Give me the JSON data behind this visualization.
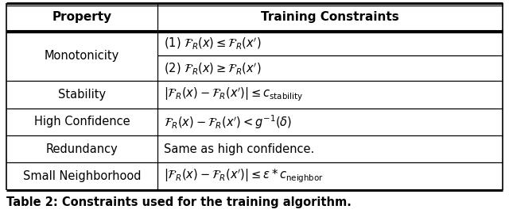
{
  "title": "Table 2: Constraints used for the training algorithm.",
  "col_headers": [
    "Property",
    "Training Constraints"
  ],
  "rows": [
    [
      "Monotonicity",
      "(1) $\\mathcal{F}_R(x) \\leq \\mathcal{F}_R(x^\\prime)$",
      "(2) $\\mathcal{F}_R(x) \\geq \\mathcal{F}_R(x^\\prime)$"
    ],
    [
      "Stability",
      "$|\\mathcal{F}_R(x) - \\mathcal{F}_R(x^\\prime)| \\leq c_{\\mathrm{stability}}$",
      ""
    ],
    [
      "High Confidence",
      "$\\mathcal{F}_R(x) - \\mathcal{F}_R(x^\\prime) < g^{-1}(\\delta)$",
      ""
    ],
    [
      "Redundancy",
      "Same as high confidence.",
      ""
    ],
    [
      "Small Neighborhood",
      "$|\\mathcal{F}_R(x) - \\mathcal{F}_R(x^\\prime)| \\leq \\epsilon * c_{\\mathrm{neighbor}}$",
      ""
    ]
  ],
  "col_split": 0.305,
  "bg_color": "#ffffff",
  "line_color": "#000000",
  "text_color": "#000000",
  "figsize": [
    6.4,
    2.74
  ],
  "dpi": 100,
  "header_fontsize": 11,
  "data_fontsize": 10.5
}
